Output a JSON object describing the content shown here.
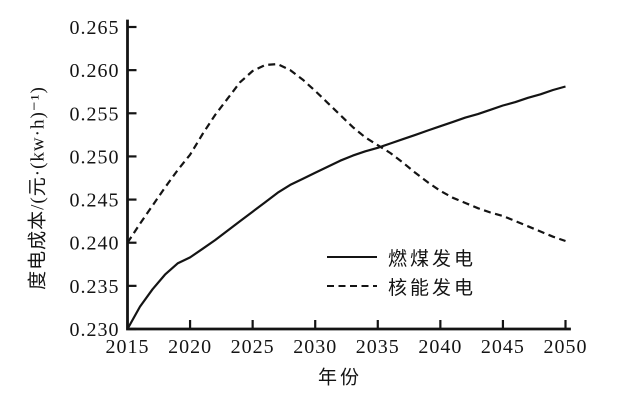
{
  "figure": {
    "background": "#ffffff",
    "ink_color": "#141414"
  },
  "chart_data": {
    "type": "line",
    "title": "",
    "xlabel": "年份",
    "ylabel": "度电成本/(元·(kw·h)⁻¹)",
    "xlim": [
      2015,
      2050
    ],
    "ylim": [
      0.23,
      0.265
    ],
    "grid": false,
    "legend_position": "inside-bottom-center",
    "x_ticks": [
      2015,
      2020,
      2025,
      2030,
      2035,
      2040,
      2045,
      2050
    ],
    "x_tick_labels": [
      "2015",
      "2020",
      "2025",
      "2030",
      "2035",
      "2040",
      "2045",
      "2050"
    ],
    "y_ticks": [
      0.23,
      0.235,
      0.24,
      0.245,
      0.25,
      0.255,
      0.26,
      0.265
    ],
    "y_tick_labels": [
      "0.230",
      "0.235",
      "0.240",
      "0.245",
      "0.250",
      "0.255",
      "0.260",
      "0.265"
    ],
    "series": [
      {
        "key": "coal",
        "name": "燃煤发电",
        "style": "solid",
        "color": "#141414",
        "points": [
          [
            2015,
            0.23
          ],
          [
            2016,
            0.2326
          ],
          [
            2017,
            0.2346
          ],
          [
            2018,
            0.2363
          ],
          [
            2019,
            0.2376
          ],
          [
            2020,
            0.2383
          ],
          [
            2021,
            0.2393
          ],
          [
            2022,
            0.2403
          ],
          [
            2023,
            0.2414
          ],
          [
            2024,
            0.2425
          ],
          [
            2025,
            0.2436
          ],
          [
            2026,
            0.2447
          ],
          [
            2027,
            0.2458
          ],
          [
            2028,
            0.2467
          ],
          [
            2029,
            0.2474
          ],
          [
            2030,
            0.2481
          ],
          [
            2031,
            0.2488
          ],
          [
            2032,
            0.2495
          ],
          [
            2033,
            0.2501
          ],
          [
            2034,
            0.2506
          ],
          [
            2035,
            0.251
          ],
          [
            2036,
            0.2515
          ],
          [
            2037,
            0.252
          ],
          [
            2038,
            0.2525
          ],
          [
            2039,
            0.253
          ],
          [
            2040,
            0.2535
          ],
          [
            2041,
            0.254
          ],
          [
            2042,
            0.2545
          ],
          [
            2043,
            0.2549
          ],
          [
            2044,
            0.2554
          ],
          [
            2045,
            0.2559
          ],
          [
            2046,
            0.2563
          ],
          [
            2047,
            0.2568
          ],
          [
            2048,
            0.2572
          ],
          [
            2049,
            0.2577
          ],
          [
            2050,
            0.2581
          ]
        ]
      },
      {
        "key": "nuclear",
        "name": "核能发电",
        "style": "dashed",
        "color": "#141414",
        "points": [
          [
            2015,
            0.24
          ],
          [
            2016,
            0.2422
          ],
          [
            2017,
            0.2443
          ],
          [
            2018,
            0.2464
          ],
          [
            2019,
            0.2484
          ],
          [
            2020,
            0.2502
          ],
          [
            2021,
            0.2526
          ],
          [
            2022,
            0.2548
          ],
          [
            2023,
            0.2567
          ],
          [
            2024,
            0.2586
          ],
          [
            2025,
            0.2599
          ],
          [
            2026,
            0.2606
          ],
          [
            2027,
            0.2607
          ],
          [
            2028,
            0.26
          ],
          [
            2029,
            0.2589
          ],
          [
            2030,
            0.2576
          ],
          [
            2031,
            0.2562
          ],
          [
            2032,
            0.2548
          ],
          [
            2033,
            0.2534
          ],
          [
            2034,
            0.2522
          ],
          [
            2035,
            0.2513
          ],
          [
            2036,
            0.2504
          ],
          [
            2037,
            0.2493
          ],
          [
            2038,
            0.2481
          ],
          [
            2039,
            0.247
          ],
          [
            2040,
            0.246
          ],
          [
            2041,
            0.2452
          ],
          [
            2042,
            0.2446
          ],
          [
            2043,
            0.244
          ],
          [
            2044,
            0.2435
          ],
          [
            2045,
            0.2431
          ],
          [
            2046,
            0.2425
          ],
          [
            2047,
            0.2419
          ],
          [
            2048,
            0.2413
          ],
          [
            2049,
            0.2407
          ],
          [
            2050,
            0.2402
          ]
        ]
      }
    ]
  }
}
